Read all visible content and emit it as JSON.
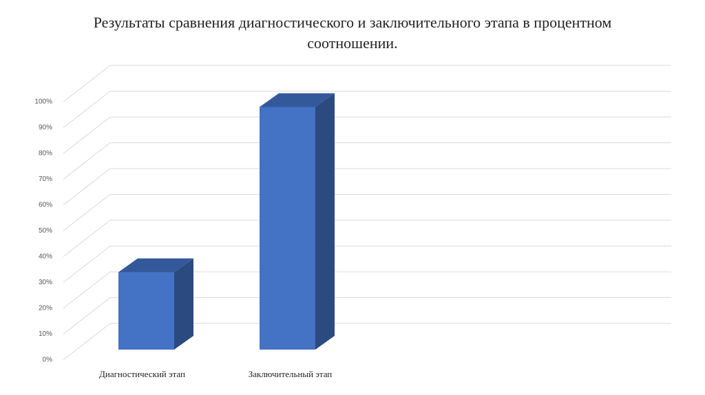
{
  "chart_data": {
    "type": "bar3d",
    "title": "Результаты сравнения диагностического и заключительного этапа в процентном соотношении.",
    "categories": [
      "Диагностический этап",
      "Заключительный этап"
    ],
    "values": [
      30,
      94
    ],
    "color": "#4472c4",
    "ylim": [
      0,
      100
    ],
    "yticks": [
      {
        "value": 0,
        "label": "0%"
      },
      {
        "value": 10,
        "label": "10%"
      },
      {
        "value": 20,
        "label": "20%"
      },
      {
        "value": 30,
        "label": "30%"
      },
      {
        "value": 40,
        "label": "40%"
      },
      {
        "value": 50,
        "label": "50%"
      },
      {
        "value": 60,
        "label": "60%"
      },
      {
        "value": 70,
        "label": "70%"
      },
      {
        "value": 80,
        "label": "80%"
      },
      {
        "value": 90,
        "label": "90%"
      },
      {
        "value": 100,
        "label": "100%"
      }
    ],
    "grid": true
  }
}
